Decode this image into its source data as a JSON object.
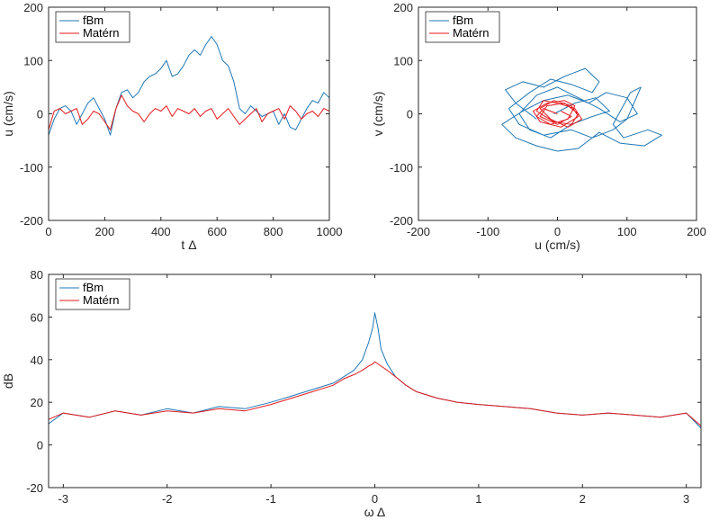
{
  "colors": {
    "fbm": "#1f77b4",
    "matern": "#e31a1c",
    "axis": "#262626"
  },
  "chart_data": [
    {
      "id": "top-left",
      "type": "line",
      "title": "",
      "xlabel": "t Δ",
      "ylabel": "u (cm/s)",
      "xlim": [
        0,
        1000
      ],
      "ylim": [
        -200,
        200
      ],
      "xticks": [
        0,
        200,
        400,
        600,
        800,
        1000
      ],
      "yticks": [
        -200,
        -100,
        0,
        100,
        200
      ],
      "legend": {
        "position": "top-left",
        "entries": [
          "fBm",
          "Matérn"
        ]
      },
      "series": [
        {
          "name": "fBm",
          "color": "#1f77b4",
          "x": [
            0,
            20,
            40,
            60,
            80,
            100,
            120,
            140,
            160,
            180,
            200,
            220,
            240,
            260,
            280,
            300,
            320,
            340,
            360,
            380,
            400,
            420,
            440,
            460,
            480,
            500,
            520,
            540,
            560,
            580,
            600,
            620,
            640,
            660,
            680,
            700,
            720,
            740,
            760,
            780,
            800,
            820,
            840,
            860,
            880,
            900,
            920,
            940,
            960,
            980,
            1000
          ],
          "values": [
            -40,
            -10,
            10,
            15,
            5,
            -20,
            0,
            20,
            30,
            10,
            -10,
            -40,
            10,
            40,
            45,
            30,
            40,
            60,
            70,
            75,
            85,
            100,
            70,
            75,
            90,
            110,
            120,
            110,
            130,
            145,
            130,
            100,
            90,
            60,
            10,
            0,
            15,
            5,
            -5,
            0,
            5,
            -20,
            0,
            -25,
            -30,
            -10,
            10,
            25,
            20,
            40,
            30
          ]
        },
        {
          "name": "Matérn",
          "color": "#e31a1c",
          "x": [
            0,
            20,
            40,
            60,
            80,
            100,
            120,
            140,
            160,
            180,
            200,
            220,
            240,
            260,
            280,
            300,
            320,
            340,
            360,
            380,
            400,
            420,
            440,
            460,
            480,
            500,
            520,
            540,
            560,
            580,
            600,
            620,
            640,
            660,
            680,
            700,
            720,
            740,
            760,
            780,
            800,
            820,
            840,
            860,
            880,
            900,
            920,
            940,
            960,
            980,
            1000
          ],
          "values": [
            -30,
            5,
            10,
            0,
            5,
            10,
            -20,
            -10,
            5,
            0,
            -15,
            -30,
            10,
            35,
            15,
            5,
            0,
            -15,
            0,
            10,
            5,
            15,
            -5,
            10,
            5,
            0,
            10,
            -5,
            5,
            10,
            -10,
            0,
            10,
            -5,
            -20,
            -10,
            0,
            10,
            -15,
            0,
            5,
            10,
            -10,
            15,
            5,
            -10,
            0,
            5,
            -5,
            10,
            5
          ]
        }
      ]
    },
    {
      "id": "top-right",
      "type": "line",
      "title": "",
      "xlabel": "u (cm/s)",
      "ylabel": "v (cm/s)",
      "xlim": [
        -200,
        200
      ],
      "ylim": [
        -200,
        200
      ],
      "xticks": [
        -200,
        -100,
        0,
        100,
        200
      ],
      "yticks": [
        -200,
        -100,
        0,
        100,
        200
      ],
      "legend": {
        "position": "top-left",
        "entries": [
          "fBm",
          "Matérn"
        ]
      },
      "series": [
        {
          "name": "fBm",
          "color": "#1f77b4",
          "x": [
            -30,
            -60,
            -75,
            -50,
            -20,
            10,
            40,
            60,
            50,
            20,
            -10,
            -40,
            -70,
            -55,
            -20,
            20,
            50,
            80,
            100,
            110,
            120,
            105,
            80,
            95,
            130,
            150,
            125,
            90,
            60,
            30,
            0,
            -30,
            -60,
            -80,
            -50,
            -20,
            15,
            45,
            70,
            100,
            115,
            90,
            60,
            30,
            0,
            -30,
            -55,
            -40,
            -10,
            20,
            50,
            75,
            55,
            25,
            -5
          ],
          "values": [
            -10,
            20,
            45,
            60,
            50,
            70,
            85,
            60,
            40,
            55,
            65,
            40,
            10,
            -20,
            -40,
            -30,
            -45,
            -30,
            -10,
            20,
            50,
            40,
            -20,
            -45,
            -30,
            -40,
            -60,
            -55,
            -35,
            -65,
            -70,
            -60,
            -45,
            -20,
            5,
            25,
            35,
            20,
            40,
            30,
            0,
            -15,
            10,
            30,
            50,
            35,
            0,
            -30,
            -45,
            -20,
            -5,
            5,
            30,
            20,
            0
          ]
        },
        {
          "name": "Matérn",
          "color": "#e31a1c",
          "x": [
            0,
            -20,
            -30,
            -10,
            15,
            25,
            10,
            -15,
            -35,
            -25,
            5,
            30,
            20,
            -5,
            -25,
            -10,
            15,
            35,
            25,
            0,
            -20,
            -30,
            -5,
            20,
            30,
            10,
            -15,
            -25,
            0,
            20,
            5
          ],
          "values": [
            0,
            10,
            -5,
            -20,
            -10,
            15,
            25,
            20,
            5,
            -15,
            -25,
            -5,
            15,
            25,
            10,
            -10,
            -25,
            -10,
            10,
            20,
            25,
            5,
            -15,
            -20,
            0,
            20,
            15,
            -5,
            -20,
            -5,
            5
          ]
        }
      ]
    },
    {
      "id": "bottom",
      "type": "line",
      "title": "",
      "xlabel": "ω Δ",
      "ylabel": "dB",
      "xlim": [
        -3.14159,
        3.14159
      ],
      "ylim": [
        -20,
        80
      ],
      "xticks": [
        -3,
        -2,
        -1,
        0,
        1,
        2,
        3
      ],
      "yticks": [
        -20,
        0,
        20,
        40,
        60,
        80
      ],
      "legend": {
        "position": "top-left",
        "entries": [
          "fBm",
          "Matérn"
        ]
      },
      "series": [
        {
          "name": "fBm",
          "color": "#1f77b4",
          "x": [
            -3.14,
            -3.0,
            -2.75,
            -2.5,
            -2.25,
            -2.0,
            -1.75,
            -1.5,
            -1.25,
            -1.0,
            -0.8,
            -0.6,
            -0.4,
            -0.3,
            -0.2,
            -0.12,
            -0.06,
            -0.02,
            0.0,
            0.03,
            0.06,
            0.12,
            0.2,
            0.3,
            0.4,
            0.6,
            0.8,
            1.0,
            1.25,
            1.5,
            1.75,
            2.0,
            2.25,
            2.5,
            2.75,
            3.0,
            3.14
          ],
          "values": [
            10,
            15,
            13,
            16,
            14,
            17,
            15,
            18,
            17,
            20,
            23,
            26,
            29,
            32,
            35,
            40,
            48,
            55,
            62,
            55,
            45,
            38,
            32,
            28,
            25,
            22,
            20,
            19,
            18,
            17,
            15,
            14,
            15,
            14,
            13,
            15,
            8
          ]
        },
        {
          "name": "Matérn",
          "color": "#e31a1c",
          "x": [
            -3.14,
            -3.0,
            -2.75,
            -2.5,
            -2.25,
            -2.0,
            -1.75,
            -1.5,
            -1.25,
            -1.0,
            -0.8,
            -0.6,
            -0.4,
            -0.3,
            -0.2,
            -0.12,
            -0.06,
            -0.02,
            0.0,
            0.03,
            0.06,
            0.12,
            0.2,
            0.3,
            0.4,
            0.6,
            0.8,
            1.0,
            1.25,
            1.5,
            1.75,
            2.0,
            2.25,
            2.5,
            2.75,
            3.0,
            3.14
          ],
          "values": [
            12,
            15,
            13,
            16,
            14,
            16,
            15,
            17,
            16,
            19,
            22,
            25,
            28,
            31,
            33,
            35,
            37,
            38,
            39,
            38,
            37,
            35,
            32,
            28,
            25,
            22,
            20,
            19,
            18,
            17,
            15,
            14,
            15,
            14,
            13,
            15,
            9
          ]
        }
      ]
    }
  ]
}
